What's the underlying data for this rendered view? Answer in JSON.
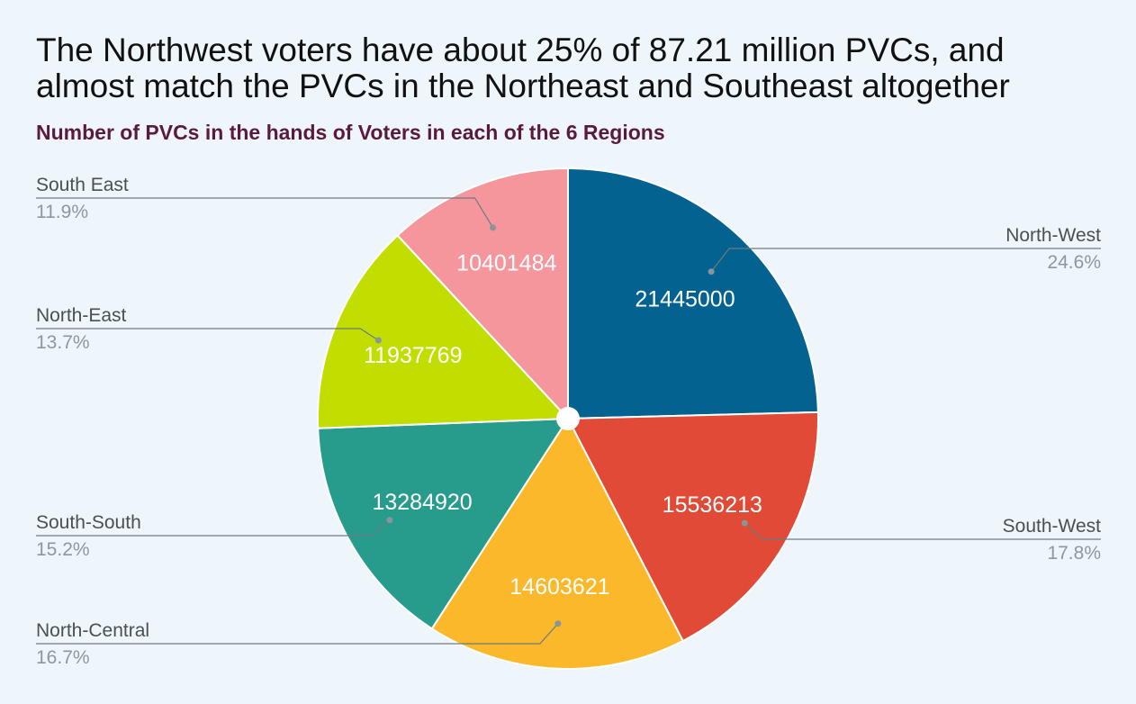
{
  "header": {
    "title_line1": "The Northwest voters have about 25% of 87.21 million PVCs, and",
    "title_line2": "almost match the PVCs in the Northeast and Southeast altogether",
    "subtitle": "Number of PVCs in the hands of Voters in each of the 6 Regions"
  },
  "chart_data": {
    "type": "pie",
    "title": "Number of PVCs in the hands of Voters in each of the 6 Regions",
    "start": "12 o'clock, clockwise",
    "slices": [
      {
        "label": "North-West",
        "value": 21445000,
        "percent": "24.6%",
        "color": "#03628f",
        "label_side": "right"
      },
      {
        "label": "South-West",
        "value": 15536213,
        "percent": "17.8%",
        "color": "#e04a37",
        "label_side": "right"
      },
      {
        "label": "North-Central",
        "value": 14603621,
        "percent": "16.7%",
        "color": "#fbb82a",
        "label_side": "left"
      },
      {
        "label": "South-South",
        "value": 13284920,
        "percent": "15.2%",
        "color": "#289c8c",
        "label_side": "left"
      },
      {
        "label": "North-East",
        "value": 11937769,
        "percent": "13.7%",
        "color": "#c2dd00",
        "label_side": "left"
      },
      {
        "label": "South East",
        "value": 10401484,
        "percent": "11.9%",
        "color": "#f4969c",
        "label_side": "left"
      }
    ]
  }
}
